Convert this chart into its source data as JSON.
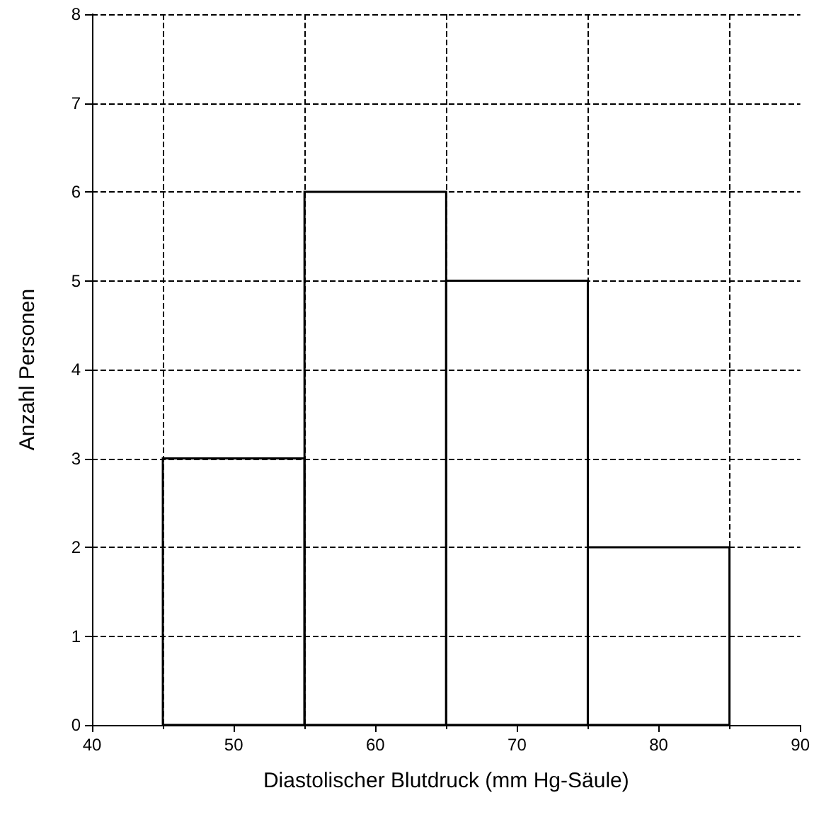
{
  "chart_data": {
    "type": "histogram",
    "xlabel": "Diastolischer Blutdruck (mm Hg-Säule)",
    "ylabel": "Anzahl Personen",
    "bins": [
      45,
      55,
      65,
      75,
      85
    ],
    "values": [
      3,
      6,
      5,
      2
    ],
    "color": "#000000",
    "xlim": [
      40,
      90
    ],
    "xticks": [
      40,
      50,
      60,
      70,
      80,
      90
    ],
    "ylim": [
      0,
      8
    ],
    "yticks": [
      0,
      1,
      2,
      3,
      4,
      5,
      6,
      7,
      8
    ],
    "grid": true
  }
}
